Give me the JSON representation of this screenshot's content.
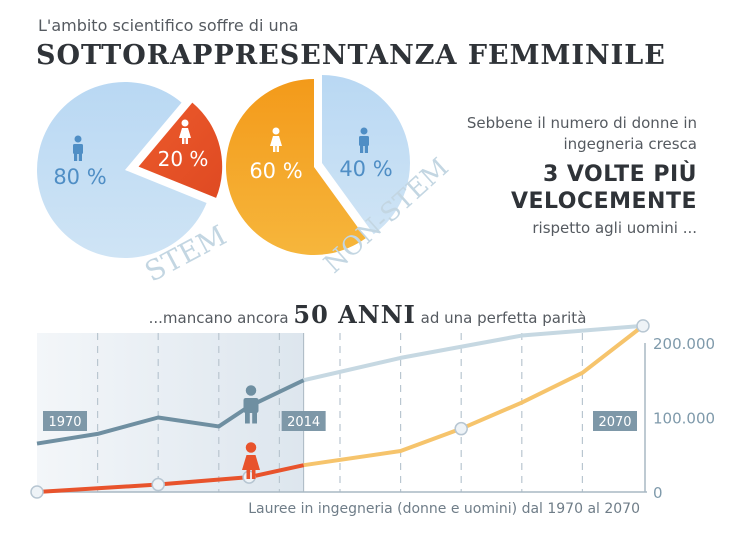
{
  "header": {
    "intro": "L'ambito scientifico soffre di una",
    "headline": "SOTTORAPPRESENTANZA FEMMINILE"
  },
  "side_note": {
    "line1": "Sebbene il numero di donne in ingegneria cresca",
    "big1": "3 VOLTE PIÙ",
    "big2": "VELOCEMENTE",
    "line2": "rispetto agli uomini ..."
  },
  "years_line": {
    "pre": "...mancano ancora",
    "big": "50 ANNI",
    "post": "ad una perfetta parità"
  },
  "colors": {
    "men_blue": "#a9cdef",
    "women_red": "#e8532c",
    "women_orange": "#f5a21e",
    "men_line": "#6f8fa1",
    "label_grey": "#7f9aab",
    "future_men": "#c6d8e2",
    "future_women": "#f6c46c"
  },
  "chart_data": [
    {
      "type": "pie",
      "title": "STEM",
      "slices": [
        {
          "label": "80 %",
          "value": 80,
          "group": "uomini",
          "icon": "man-icon"
        },
        {
          "label": "20 %",
          "value": 20,
          "group": "donne",
          "icon": "woman-icon"
        }
      ]
    },
    {
      "type": "pie",
      "title": "NON-STEM",
      "slices": [
        {
          "label": "60 %",
          "value": 60,
          "group": "donne",
          "icon": "woman-icon"
        },
        {
          "label": "40 %",
          "value": 40,
          "group": "uomini",
          "icon": "man-icon"
        }
      ]
    },
    {
      "type": "line",
      "caption": "Lauree in ingegneria (donne e uomini) dal 1970 al 2070",
      "xlim": [
        1970,
        2070
      ],
      "ylim": [
        0,
        200000
      ],
      "yticks": [
        0,
        100000,
        200000
      ],
      "ytick_labels": [
        "0",
        "100.000",
        "200.000"
      ],
      "year_markers": [
        {
          "year": 1970,
          "label": "1970"
        },
        {
          "year": 2014,
          "label": "2014"
        },
        {
          "year": 2070,
          "label": "2070"
        }
      ],
      "historical_range": [
        1970,
        2014
      ],
      "series": [
        {
          "name": "uomini",
          "icon": "man-icon",
          "x": [
            1970,
            1980,
            1990,
            2000,
            2005,
            2014,
            2030,
            2050,
            2070
          ],
          "y": [
            65000,
            78000,
            100000,
            88000,
            115000,
            150000,
            180000,
            210000,
            223000
          ],
          "projection_from": 2014
        },
        {
          "name": "donne",
          "icon": "woman-icon",
          "x": [
            1970,
            1990,
            2005,
            2014,
            2030,
            2040,
            2050,
            2060,
            2070
          ],
          "y": [
            0,
            10000,
            20000,
            36000,
            55000,
            85000,
            120000,
            160000,
            223000
          ],
          "projection_from": 2014,
          "marked_points": [
            1970,
            1990,
            2005,
            2040,
            2070
          ]
        }
      ]
    }
  ]
}
